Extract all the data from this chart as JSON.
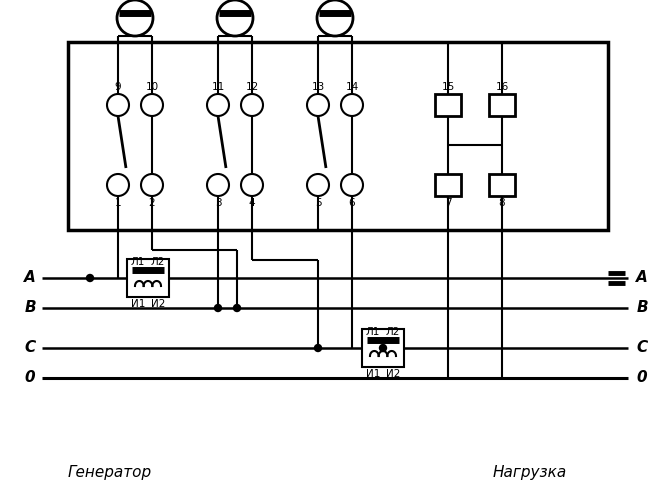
{
  "generator_label": "Генератор",
  "load_label": "Нагрузка",
  "phase_labels": [
    "A",
    "B",
    "C",
    "0"
  ],
  "terminal_numbers_top": [
    "9",
    "10",
    "11",
    "12",
    "13",
    "14",
    "15",
    "16"
  ],
  "terminal_numbers_bot": [
    "1",
    "2",
    "3",
    "4",
    "5",
    "6",
    "7",
    "8"
  ],
  "ct_L1": "Л1",
  "ct_L2": "Л2",
  "ct_I1": "И1",
  "ct_I2": "И2",
  "figsize": [
    6.7,
    4.92
  ],
  "dpi": 100
}
